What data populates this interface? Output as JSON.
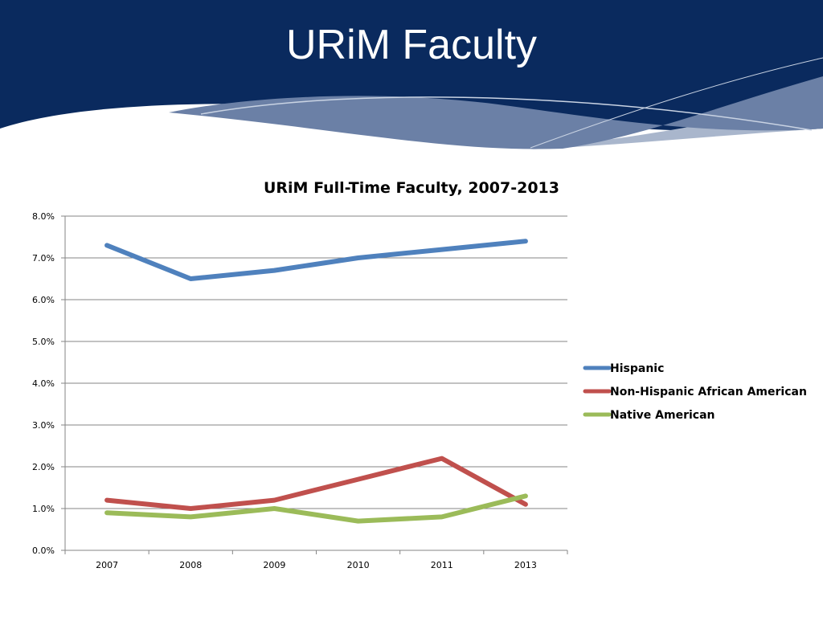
{
  "slide": {
    "title": "URiM Faculty",
    "colors": {
      "banner": "#0a2a5e",
      "swoosh_light": "#a9b6cc",
      "swoosh_mid": "#6b80a6"
    }
  },
  "chart_data": {
    "type": "line",
    "title": "URiM Full-Time Faculty, 2007-2013",
    "categories": [
      "2007",
      "2008",
      "2009",
      "2010",
      "2011",
      "2013"
    ],
    "series": [
      {
        "name": "Hispanic",
        "color": "#4f81bd",
        "values": [
          7.3,
          6.5,
          6.7,
          7.0,
          7.2,
          7.4
        ]
      },
      {
        "name": "Non-Hispanic African American",
        "color": "#c0504d",
        "values": [
          1.2,
          1.0,
          1.2,
          1.7,
          2.2,
          1.1
        ]
      },
      {
        "name": "Native American",
        "color": "#9bbb59",
        "values": [
          0.9,
          0.8,
          1.0,
          0.7,
          0.8,
          1.3
        ]
      }
    ],
    "ylim": [
      0,
      8
    ],
    "yticks": [
      "0.0%",
      "1.0%",
      "2.0%",
      "3.0%",
      "4.0%",
      "5.0%",
      "6.0%",
      "7.0%",
      "8.0%"
    ],
    "xlabel": "",
    "ylabel": "",
    "grid": true,
    "legend": "right"
  }
}
